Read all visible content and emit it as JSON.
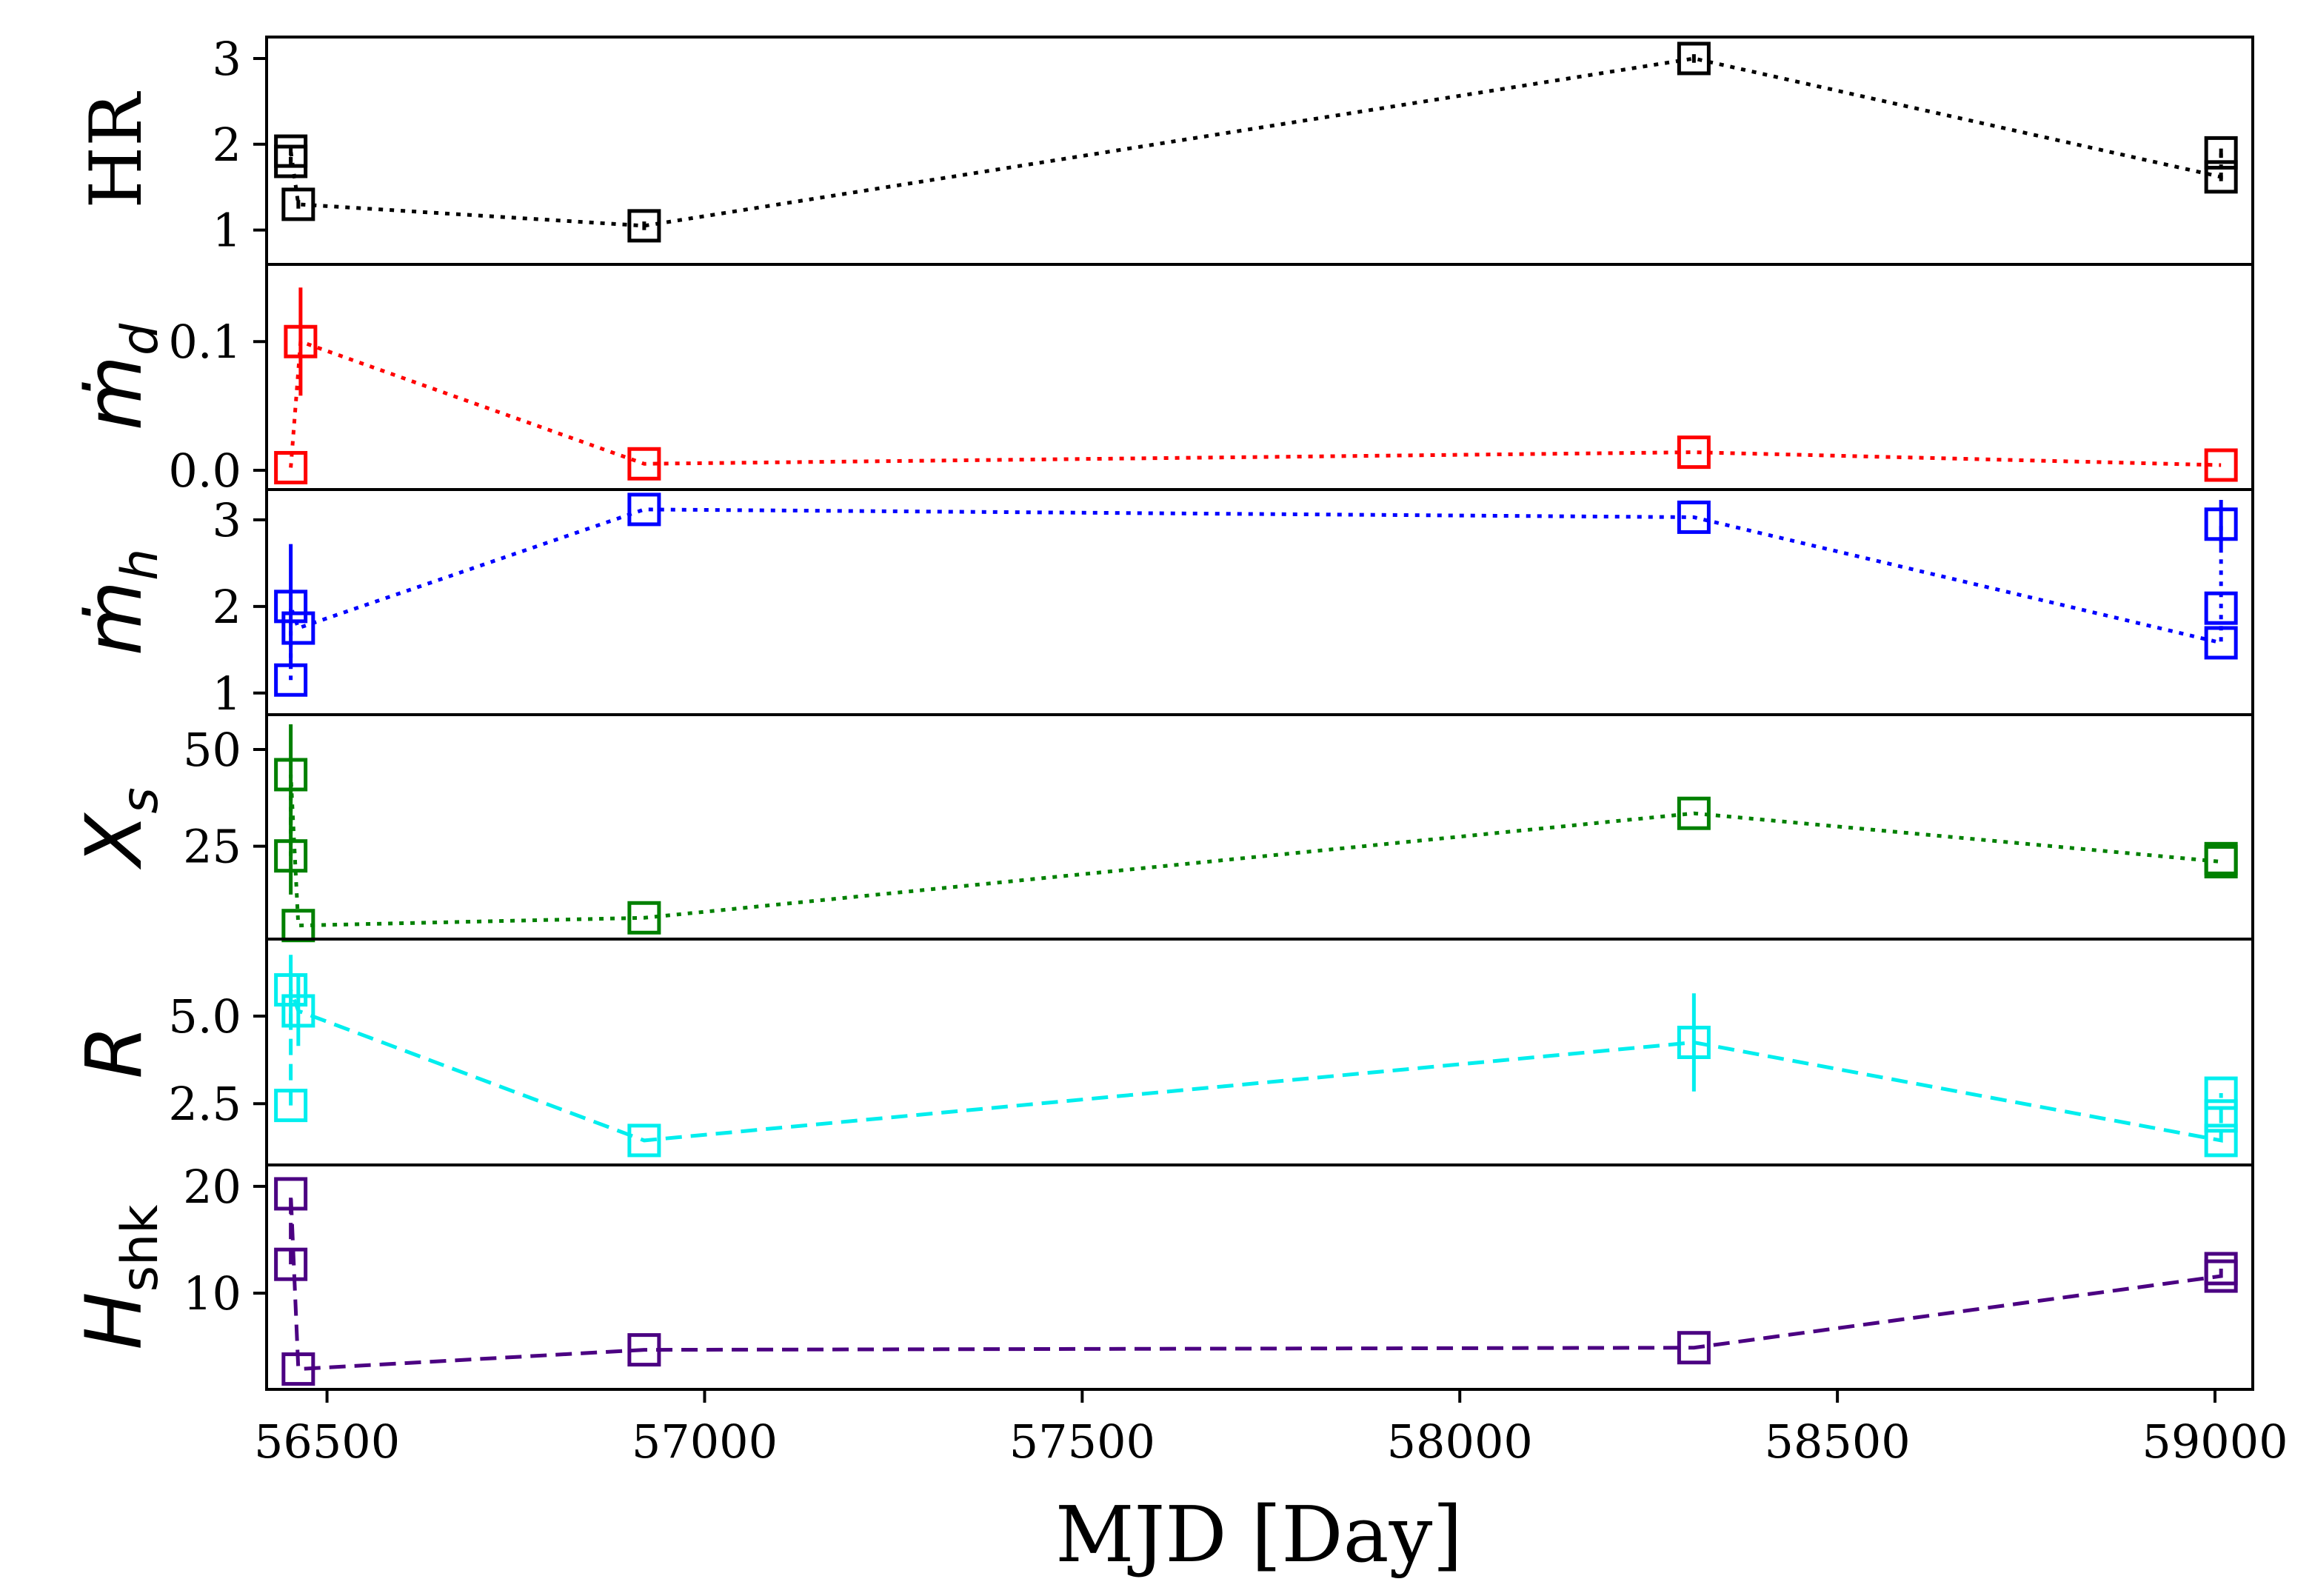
{
  "chart_data": {
    "type": "line",
    "layout": "stacked-panels-shared-x",
    "xlabel": "MJD [Day]",
    "xlim": [
      56420,
      59050
    ],
    "xticks": [
      56500,
      57000,
      57500,
      58000,
      58500,
      59000
    ],
    "xtick_labels": [
      "56500",
      "57000",
      "57500",
      "58000",
      "58500",
      "59000"
    ],
    "panels": [
      {
        "id": "hr",
        "ylabel": "HR",
        "color": "#000000",
        "linestyle": "dotted",
        "ylim": [
          0.6,
          3.25
        ],
        "yticks": [
          1,
          2,
          3
        ],
        "ytick_labels": [
          "1",
          "2",
          "3"
        ],
        "points": [
          {
            "x": 56452,
            "y": 1.8,
            "err": 0.05
          },
          {
            "x": 56452,
            "y": 1.92,
            "err": 0.05
          },
          {
            "x": 56462,
            "y": 1.3,
            "err": 0.05
          },
          {
            "x": 56920,
            "y": 1.05,
            "err": 0.05
          },
          {
            "x": 58310,
            "y": 3.0,
            "err": 0.05
          },
          {
            "x": 59008,
            "y": 1.62,
            "err": 0.05
          },
          {
            "x": 59008,
            "y": 1.9,
            "err": 0.05
          }
        ]
      },
      {
        "id": "mdot-d",
        "ylabel": "ṁ_d",
        "ylabel_base": "ṁ",
        "ylabel_sub": "d",
        "color": "#ff0000",
        "linestyle": "dotted",
        "ylim": [
          -0.015,
          0.16
        ],
        "yticks": [
          0.0,
          0.1
        ],
        "ytick_labels": [
          "0.0",
          "0.1"
        ],
        "points": [
          {
            "x": 56452,
            "y": 0.002,
            "err": 0.0
          },
          {
            "x": 56465,
            "y": 0.1,
            "err": 0.042
          },
          {
            "x": 56920,
            "y": 0.005,
            "err": 0.0
          },
          {
            "x": 58310,
            "y": 0.014,
            "err": 0.0
          },
          {
            "x": 59008,
            "y": 0.004,
            "err": 0.0
          }
        ]
      },
      {
        "id": "mdot-h",
        "ylabel": "ṁ_h",
        "ylabel_base": "ṁ",
        "ylabel_sub": "h",
        "color": "#0000ff",
        "linestyle": "dotted",
        "ylim": [
          0.75,
          3.35
        ],
        "yticks": [
          1,
          2,
          3
        ],
        "ytick_labels": [
          "1",
          "2",
          "3"
        ],
        "points": [
          {
            "x": 56452,
            "y": 1.15,
            "err": 0.0
          },
          {
            "x": 56452,
            "y": 2.0,
            "err": 0.72
          },
          {
            "x": 56462,
            "y": 1.75,
            "err": 0.0
          },
          {
            "x": 56920,
            "y": 3.12,
            "err": 0.0
          },
          {
            "x": 58310,
            "y": 3.03,
            "err": 0.0
          },
          {
            "x": 59008,
            "y": 1.58,
            "err": 0.0
          },
          {
            "x": 59008,
            "y": 1.98,
            "err": 0.0
          },
          {
            "x": 59008,
            "y": 2.95,
            "err": 0.28
          }
        ]
      },
      {
        "id": "xs",
        "ylabel": "X_s",
        "ylabel_base": "X",
        "ylabel_sub": "s",
        "color": "#008000",
        "linestyle": "dotted",
        "ylim": [
          1,
          59
        ],
        "yticks": [
          25,
          50
        ],
        "ytick_labels": [
          "25",
          "50"
        ],
        "points": [
          {
            "x": 56452,
            "y": 43.5,
            "err": 13.0
          },
          {
            "x": 56452,
            "y": 22.5,
            "err": 10.0
          },
          {
            "x": 56462,
            "y": 4.5,
            "err": 0.0
          },
          {
            "x": 56920,
            "y": 6.5,
            "err": 0.0
          },
          {
            "x": 58310,
            "y": 33.5,
            "err": 0.0
          },
          {
            "x": 59008,
            "y": 21.0,
            "err": 0.0
          },
          {
            "x": 59008,
            "y": 21.8,
            "err": 0.0
          }
        ]
      },
      {
        "id": "r",
        "ylabel": "R",
        "color": "#00eeee",
        "linestyle": "dashed",
        "ylim": [
          0.75,
          7.2
        ],
        "yticks": [
          2.5,
          5.0
        ],
        "ytick_labels": [
          "2.5",
          "5.0"
        ],
        "points": [
          {
            "x": 56452,
            "y": 5.75,
            "err": 1.0
          },
          {
            "x": 56452,
            "y": 2.45,
            "err": 0.0
          },
          {
            "x": 56462,
            "y": 5.15,
            "err": 1.0
          },
          {
            "x": 56920,
            "y": 1.45,
            "err": 0.0
          },
          {
            "x": 58310,
            "y": 4.25,
            "err": 1.4
          },
          {
            "x": 59008,
            "y": 1.45,
            "err": 0.0
          },
          {
            "x": 59008,
            "y": 2.15,
            "err": 0.0
          },
          {
            "x": 59008,
            "y": 2.8,
            "err": 0.0
          }
        ]
      },
      {
        "id": "hshk",
        "ylabel": "H_shk",
        "ylabel_base": "H",
        "ylabel_sub": "shk",
        "color": "#4b0082",
        "linestyle": "dashed",
        "ylim": [
          1,
          22
        ],
        "yticks": [
          10,
          20
        ],
        "ytick_labels": [
          "10",
          "20"
        ],
        "points": [
          {
            "x": 56452,
            "y": 19.3,
            "err": 0.0
          },
          {
            "x": 56452,
            "y": 12.7,
            "err": 0.0
          },
          {
            "x": 56462,
            "y": 2.9,
            "err": 0.0
          },
          {
            "x": 56920,
            "y": 4.7,
            "err": 0.0
          },
          {
            "x": 58310,
            "y": 4.9,
            "err": 0.0
          },
          {
            "x": 59008,
            "y": 11.6,
            "err": 0.0
          },
          {
            "x": 59008,
            "y": 12.3,
            "err": 0.0
          }
        ]
      }
    ]
  }
}
